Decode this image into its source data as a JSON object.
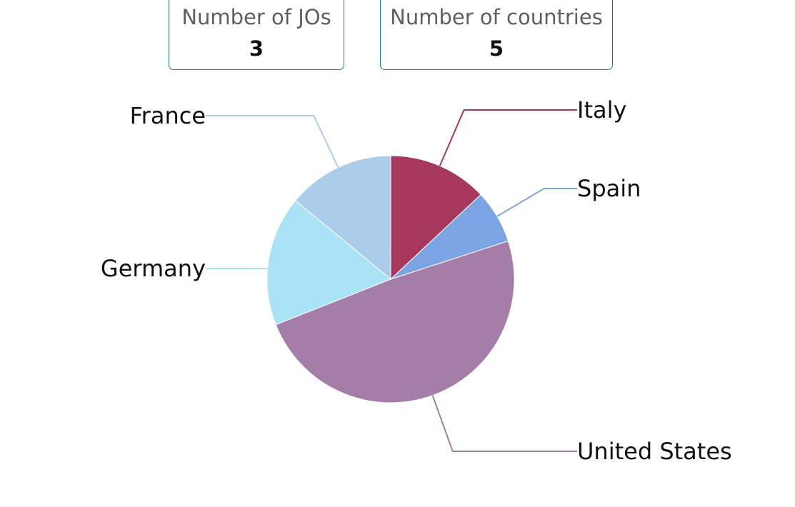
{
  "kpis": {
    "jos": {
      "label": "Number of JOs",
      "value": "3"
    },
    "countries": {
      "label": "Number of countries",
      "value": "5"
    }
  },
  "chart_data": {
    "type": "pie",
    "title": "",
    "categories": [
      "Italy",
      "Spain",
      "United States",
      "Germany",
      "France"
    ],
    "values": [
      13,
      7,
      49,
      17,
      14
    ],
    "colors": [
      "#a5385c",
      "#7aa4e4",
      "#a47ea8",
      "#aae3f5",
      "#acccec"
    ],
    "legend": "none"
  }
}
